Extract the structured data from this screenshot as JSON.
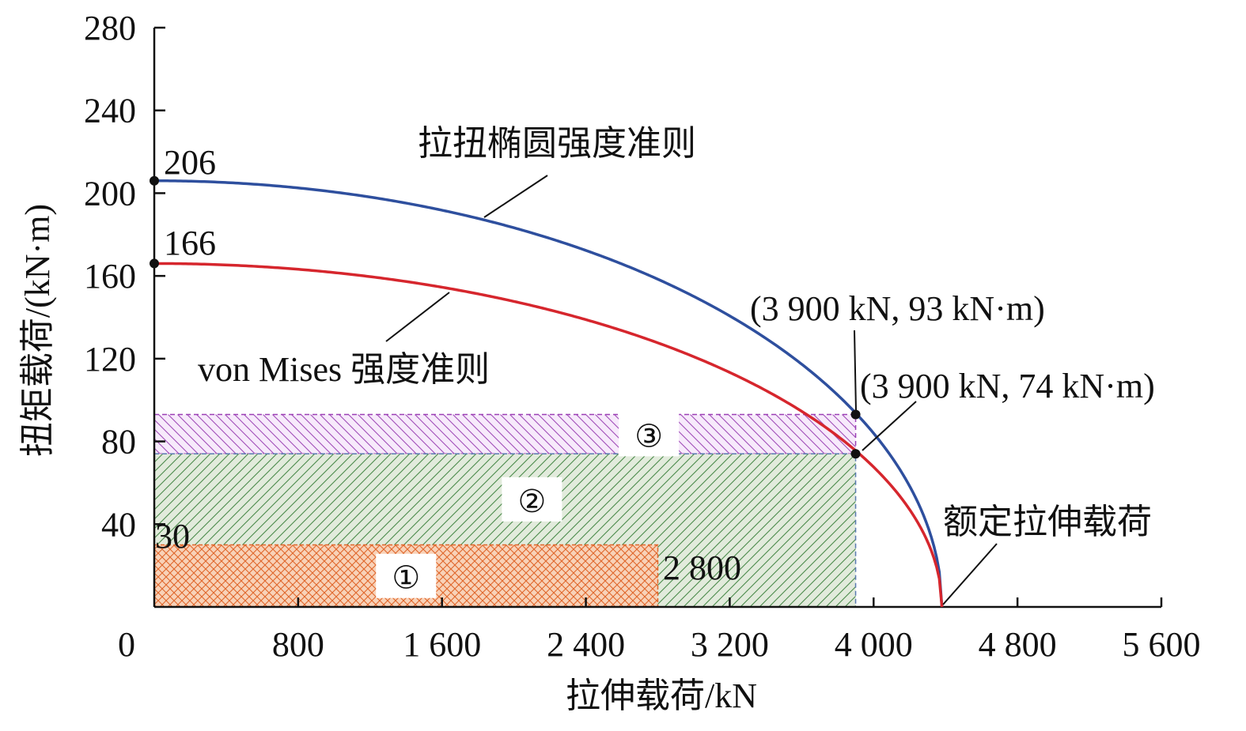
{
  "chart_data": {
    "type": "area",
    "xlabel": "拉伸载荷/kN",
    "ylabel": "扭矩载荷/(kN·m)",
    "xlim": [
      0,
      5600
    ],
    "ylim": [
      0,
      280
    ],
    "x_ticks": [
      {
        "value": 0,
        "label": "0"
      },
      {
        "value": 800,
        "label": "800"
      },
      {
        "value": 1600,
        "label": "1 600"
      },
      {
        "value": 2400,
        "label": "2 400"
      },
      {
        "value": 3200,
        "label": "3 200"
      },
      {
        "value": 4000,
        "label": "4 000"
      },
      {
        "value": 4800,
        "label": "4 800"
      },
      {
        "value": 5600,
        "label": "5 600"
      }
    ],
    "y_ticks": [
      {
        "value": 40,
        "label": "40"
      },
      {
        "value": 80,
        "label": "80"
      },
      {
        "value": 120,
        "label": "120"
      },
      {
        "value": 160,
        "label": "160"
      },
      {
        "value": 200,
        "label": "200"
      },
      {
        "value": 240,
        "label": "240"
      },
      {
        "value": 280,
        "label": "280"
      }
    ],
    "series": [
      {
        "name": "拉扭椭圆强度准则",
        "color": "#2e4f9e",
        "shape": "ellipse",
        "x_intercept": 4380,
        "y_intercept": 206
      },
      {
        "name": "von Mises 强度准则",
        "color": "#d6262d",
        "shape": "ellipse",
        "x_intercept": 4380,
        "y_intercept": 166
      }
    ],
    "regions": [
      {
        "label": "①",
        "x_max": 2800,
        "y_max": 30,
        "color": "#e8702a",
        "fill": "#f6c7a8"
      },
      {
        "label": "②",
        "x_max": 3900,
        "y_max": 74,
        "color": "#3f8a3f",
        "fill": "#dde8d7"
      },
      {
        "label": "③",
        "x_min": 0,
        "x_max": 3900,
        "y_min": 74,
        "y_max": 93,
        "color": "#9b3fb5",
        "fill": "#f3e5f8"
      }
    ],
    "points": [
      {
        "x": 3900,
        "y": 93,
        "label": "(3 900 kN, 93 kN·m)"
      },
      {
        "x": 3900,
        "y": 74,
        "label": "(3 900 kN, 74 kN·m)"
      },
      {
        "x": 0,
        "y": 206,
        "label": "206"
      },
      {
        "x": 0,
        "y": 166,
        "label": "166"
      }
    ],
    "annotations": {
      "y30": "30",
      "x2800": "2 800",
      "rated_tension": "额定拉伸载荷"
    }
  }
}
